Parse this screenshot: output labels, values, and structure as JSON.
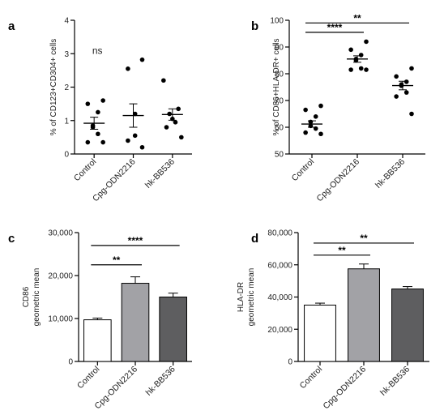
{
  "chart_data": [
    {
      "panel": "a",
      "type": "scatter",
      "categories": [
        "Control",
        "Cpg-ODN2216",
        "hk-BB536"
      ],
      "ylabel": "% of CD123+CD304+ cells",
      "ylim": [
        0,
        4
      ],
      "yticks": [
        "0",
        "1",
        "2",
        "3",
        "4"
      ],
      "points": [
        [
          0.35,
          0.35,
          0.6,
          0.8,
          0.85,
          1.25,
          1.5,
          1.6
        ],
        [
          0.2,
          0.4,
          0.55,
          1.2,
          2.55,
          2.82
        ],
        [
          0.5,
          0.8,
          0.95,
          1.05,
          1.2,
          1.35,
          2.2
        ]
      ],
      "mean": [
        0.92,
        1.15,
        1.18
      ],
      "sem": [
        0.18,
        0.35,
        0.17
      ],
      "annotations": [
        {
          "text": "ns",
          "from": 0,
          "to": 0,
          "y": 3.0,
          "line": false
        }
      ]
    },
    {
      "panel": "b",
      "type": "scatter",
      "categories": [
        "Control",
        "Cpg-ODN2216",
        "hk-BB536"
      ],
      "ylabel": "% of CD86+HLA-DR+ cells",
      "ylim": [
        50,
        100
      ],
      "yticks": [
        "50",
        "60",
        "70",
        "80",
        "90",
        "100"
      ],
      "points": [
        [
          57.5,
          58.0,
          59.5,
          60.5,
          62.0,
          64.0,
          66.5,
          68.0
        ],
        [
          81.5,
          81.5,
          82.0,
          85.0,
          85.5,
          87.0,
          89.0,
          92.0
        ],
        [
          65.0,
          71.5,
          73.0,
          75.5,
          76.0,
          77.0,
          79.0,
          82.0
        ]
      ],
      "mean": [
        61.2,
        85.5,
        75.6
      ],
      "sem": [
        1.2,
        1.2,
        1.6
      ],
      "annotations": [
        {
          "text": "****",
          "from": 0,
          "to": 1,
          "y": 95.5,
          "line": true
        },
        {
          "text": "**",
          "from": 0,
          "to": 2,
          "y": 99.0,
          "line": true
        }
      ]
    },
    {
      "panel": "c",
      "type": "bar",
      "categories": [
        "Control",
        "Cpg-ODN2216",
        "hk-BB536"
      ],
      "ylabel": [
        "CD86",
        "geometric mean"
      ],
      "ylim": [
        0,
        30000
      ],
      "yticks": [
        "0",
        "10,000",
        "20,000",
        "30,000"
      ],
      "values": [
        9700,
        18200,
        15000
      ],
      "sem": [
        400,
        1500,
        900
      ],
      "colors": [
        "#ffffff",
        "#a2a2a6",
        "#5e5e60"
      ],
      "annotations": [
        {
          "text": "**",
          "from": 0,
          "to": 1,
          "y": 22500,
          "line": true
        },
        {
          "text": "****",
          "from": 0,
          "to": 2,
          "y": 27000,
          "line": true
        }
      ]
    },
    {
      "panel": "d",
      "type": "bar",
      "categories": [
        "Control",
        "Cpg-ODN2216",
        "hk-BB536"
      ],
      "ylabel": [
        "HLA-DR",
        "geometric mean"
      ],
      "ylim": [
        0,
        80000
      ],
      "yticks": [
        "0",
        "20,000",
        "40,000",
        "60,000",
        "80,000"
      ],
      "values": [
        35000,
        57500,
        45000
      ],
      "sem": [
        1200,
        3000,
        1500
      ],
      "colors": [
        "#ffffff",
        "#a2a2a6",
        "#5e5e60"
      ],
      "annotations": [
        {
          "text": "**",
          "from": 0,
          "to": 1,
          "y": 66000,
          "line": true
        },
        {
          "text": "**",
          "from": 0,
          "to": 2,
          "y": 73500,
          "line": true
        }
      ]
    }
  ]
}
